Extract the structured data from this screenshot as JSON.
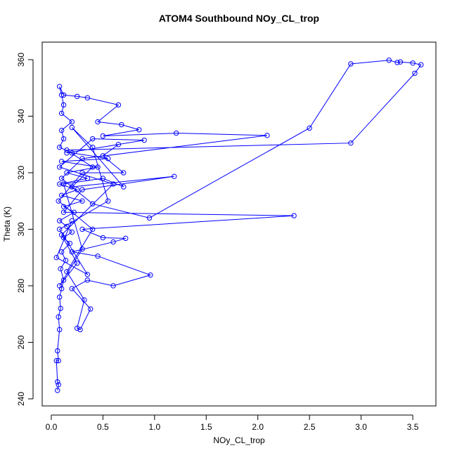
{
  "chart_data": {
    "type": "line",
    "title": "ATOM4 Southbound NOy_CL_trop",
    "x_label": "NOy_CL_trop",
    "y_label": "Theta (K)",
    "color": "#0000ff",
    "markers": true,
    "grid": false,
    "xlim": [
      -0.088,
      3.724
    ],
    "ylim": [
      237.5,
      366.2
    ],
    "xticks": [
      {
        "value": 0,
        "label": "0.0"
      },
      0.5,
      {
        "value": 1,
        "label": "1.0"
      },
      1.5,
      {
        "value": 2,
        "label": "2.0"
      },
      2.5,
      {
        "value": 3,
        "label": "3.0"
      },
      3.5
    ],
    "yticks": [
      240,
      260,
      280,
      300,
      320,
      340,
      360
    ],
    "x": [
      0.06,
      0.07,
      0.06,
      0.05,
      0.07,
      0.06,
      0.08,
      0.07,
      0.09,
      0.08,
      0.1,
      0.12,
      0.09,
      0.14,
      0.1,
      0.18,
      0.12,
      0.2,
      0.15,
      0.08,
      0.22,
      0.12,
      0.3,
      0.1,
      0.25,
      0.08,
      0.35,
      0.15,
      0.45,
      0.1,
      0.55,
      0.2,
      0.08,
      0.12,
      0.1,
      0.2,
      0.1,
      0.12,
      0.1,
      0.08,
      0.12,
      0.25,
      0.35,
      0.65,
      0.45,
      0.68,
      0.85,
      0.5,
      1.21,
      2.09,
      0.3,
      0.1,
      0.4,
      0.95,
      2.5,
      2.9,
      3.27,
      3.35,
      3.38,
      3.5,
      3.58,
      3.52,
      2.9,
      0.15,
      0.4,
      0.2,
      1.19,
      0.3,
      0.12,
      2.35,
      0.3,
      0.5,
      0.72,
      0.6,
      0.2,
      0.45,
      0.96,
      0.6,
      0.35,
      0.2,
      0.38,
      0.28,
      0.25,
      0.32,
      0.15,
      0.4,
      0.07,
      0.3,
      0.7,
      0.5,
      0.65,
      0.15,
      0.9,
      0.4,
      0.08,
      0.6,
      0.1,
      0.25,
      0.08,
      0.3,
      0.12,
      0.5,
      0.7,
      0.2,
      0.4,
      0.55,
      0.08,
      0.35,
      0.05,
      0.2
    ],
    "values": [
      243,
      245,
      246,
      253.5,
      253.5,
      257,
      264.5,
      269,
      272,
      276,
      279,
      282,
      286,
      289,
      292,
      295,
      297,
      299,
      301,
      303,
      306,
      308,
      310,
      312,
      314,
      316,
      318,
      320,
      322,
      324,
      325,
      327,
      329,
      332,
      335,
      338,
      341,
      344,
      347.5,
      350.5,
      347.5,
      347,
      346.5,
      344,
      338,
      337,
      335.2,
      333,
      334,
      333.2,
      325,
      318,
      309,
      304,
      335.8,
      358.5,
      359.8,
      359,
      359.2,
      358.8,
      358.2,
      355.2,
      330.5,
      328,
      322,
      315,
      318.7,
      314,
      306,
      304.8,
      300,
      297,
      296.8,
      295.5,
      292,
      290.5,
      283.8,
      280,
      282,
      279,
      271.8,
      264.5,
      265,
      275,
      285,
      300,
      310,
      320,
      320,
      326,
      330,
      327,
      331.5,
      332,
      322,
      316,
      298,
      288,
      280,
      293,
      316,
      318,
      315,
      336,
      329,
      310,
      300,
      284,
      290,
      303
    ]
  }
}
